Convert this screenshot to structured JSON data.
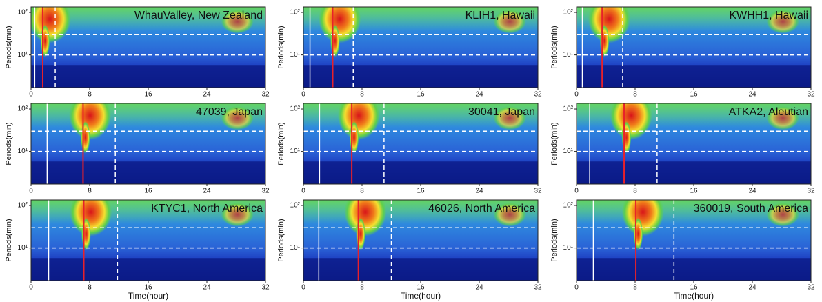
{
  "chart_data": [
    {
      "type": "heatmap",
      "title": "WhauValley, New Zealand",
      "ylabel": "Periods(min)",
      "xlim": [
        0,
        32
      ],
      "xticks": [
        0,
        8,
        16,
        24,
        32
      ],
      "ylim": [
        1.7,
        135
      ],
      "yscale": "log",
      "yticks": [
        {
          "value": 10,
          "label": "10¹"
        },
        {
          "value": 100,
          "label": "10²"
        }
      ],
      "marker_x": 1.6,
      "marker_color": "#e8202a",
      "guide_x": [
        0.5,
        3.3
      ],
      "guide_y": [
        10,
        30
      ]
    },
    {
      "type": "heatmap",
      "title": "KLIH1, Hawaii",
      "ylabel": "Periods(min)",
      "xlim": [
        0,
        32
      ],
      "xticks": [
        0,
        8,
        16,
        24,
        32
      ],
      "ylim": [
        1.7,
        135
      ],
      "yscale": "log",
      "yticks": [
        {
          "value": 10,
          "label": "10¹"
        },
        {
          "value": 100,
          "label": "10²"
        }
      ],
      "marker_x": 4.0,
      "marker_color": "#e8202a",
      "guide_x": [
        0.9,
        6.8
      ],
      "guide_y": [
        10,
        30
      ]
    },
    {
      "type": "heatmap",
      "title": "KWHH1, Hawaii",
      "ylabel": "Periods(min)",
      "xlim": [
        0,
        32
      ],
      "xticks": [
        0,
        8,
        16,
        24,
        32
      ],
      "ylim": [
        1.7,
        135
      ],
      "yscale": "log",
      "yticks": [
        {
          "value": 10,
          "label": "10¹"
        },
        {
          "value": 100,
          "label": "10²"
        }
      ],
      "marker_x": 3.5,
      "marker_color": "#e8202a",
      "guide_x": [
        0.8,
        6.3
      ],
      "guide_y": [
        10,
        30
      ]
    },
    {
      "type": "heatmap",
      "title": "47039, Japan",
      "ylabel": "Periods(min)",
      "xlim": [
        0,
        32
      ],
      "xticks": [
        0,
        8,
        16,
        24,
        32
      ],
      "ylim": [
        1.7,
        135
      ],
      "yscale": "log",
      "yticks": [
        {
          "value": 10,
          "label": "10¹"
        },
        {
          "value": 100,
          "label": "10²"
        }
      ],
      "marker_x": 7.1,
      "marker_color": "#e8202a",
      "guide_x": [
        2.2,
        11.5
      ],
      "guide_y": [
        10,
        30
      ]
    },
    {
      "type": "heatmap",
      "title": "30041, Japan",
      "ylabel": "Periods(min)",
      "xlim": [
        0,
        32
      ],
      "xticks": [
        0,
        8,
        16,
        24,
        32
      ],
      "ylim": [
        1.7,
        135
      ],
      "yscale": "log",
      "yticks": [
        {
          "value": 10,
          "label": "10¹"
        },
        {
          "value": 100,
          "label": "10²"
        }
      ],
      "marker_x": 6.6,
      "marker_color": "#e8202a",
      "guide_x": [
        2.2,
        11.0
      ],
      "guide_y": [
        10,
        30
      ]
    },
    {
      "type": "heatmap",
      "title": "ATKA2, Aleutian",
      "ylabel": "Periods(min)",
      "xlim": [
        0,
        32
      ],
      "xticks": [
        0,
        8,
        16,
        24,
        32
      ],
      "ylim": [
        1.7,
        135
      ],
      "yscale": "log",
      "yticks": [
        {
          "value": 10,
          "label": "10¹"
        },
        {
          "value": 100,
          "label": "10²"
        }
      ],
      "marker_x": 6.5,
      "marker_color": "#e8202a",
      "guide_x": [
        1.8,
        11.0
      ],
      "guide_y": [
        10,
        30
      ]
    },
    {
      "type": "heatmap",
      "title": "KTYC1, North America",
      "ylabel": "Periods(min)",
      "xlabel": "Time(hour)",
      "xlim": [
        0,
        32
      ],
      "xticks": [
        0,
        8,
        16,
        24,
        32
      ],
      "ylim": [
        1.7,
        135
      ],
      "yscale": "log",
      "yticks": [
        {
          "value": 10,
          "label": "10¹"
        },
        {
          "value": 100,
          "label": "10²"
        }
      ],
      "marker_x": 7.2,
      "marker_color": "#e8202a",
      "guide_x": [
        2.4,
        11.8
      ],
      "guide_y": [
        10,
        30
      ]
    },
    {
      "type": "heatmap",
      "title": "46026, North America",
      "ylabel": "Periods(min)",
      "xlabel": "Time(hour)",
      "xlim": [
        0,
        32
      ],
      "xticks": [
        0,
        8,
        16,
        24,
        32
      ],
      "ylim": [
        1.7,
        135
      ],
      "yscale": "log",
      "yticks": [
        {
          "value": 10,
          "label": "10¹"
        },
        {
          "value": 100,
          "label": "10²"
        }
      ],
      "marker_x": 7.5,
      "marker_color": "#e8202a",
      "guide_x": [
        2.1,
        12.0
      ],
      "guide_y": [
        10,
        30
      ]
    },
    {
      "type": "heatmap",
      "title": "360019, South America",
      "ylabel": "Periods(min)",
      "xlabel": "Time(hour)",
      "xlim": [
        0,
        32
      ],
      "xticks": [
        0,
        8,
        16,
        24,
        32
      ],
      "ylim": [
        1.7,
        135
      ],
      "yscale": "log",
      "yticks": [
        {
          "value": 10,
          "label": "10¹"
        },
        {
          "value": 100,
          "label": "10²"
        }
      ],
      "marker_x": 8.1,
      "marker_color": "#e8202a",
      "guide_x": [
        2.3,
        13.3
      ],
      "guide_y": [
        10,
        30
      ]
    }
  ]
}
